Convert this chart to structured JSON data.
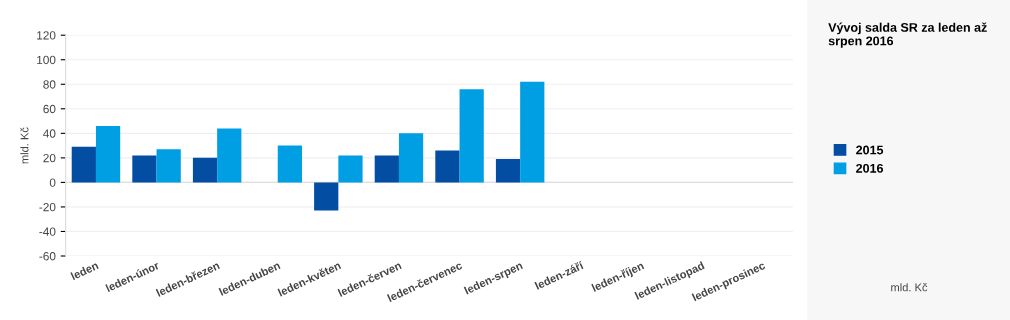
{
  "chart_data": {
    "type": "bar",
    "title": "Vývoj salda SR za leden až srpen 2016",
    "ylabel": "mld. Kč",
    "annotations": [
      "mld. Kč"
    ],
    "categories": [
      "leden",
      "leden-únor",
      "leden-březen",
      "leden-duben",
      "leden-květen",
      "leden-červen",
      "leden-červenec",
      "leden-srpen",
      "leden-září",
      "leden-říjen",
      "leden-listopad",
      "leden-prosinec"
    ],
    "series": [
      {
        "name": "2015",
        "color": "#034ea2",
        "values": [
          29,
          22,
          20,
          null,
          -23,
          22,
          26,
          19,
          null,
          null,
          null,
          null
        ]
      },
      {
        "name": "2016",
        "color": "#009fe3",
        "values": [
          46,
          27,
          44,
          30,
          22,
          40,
          76,
          82,
          null,
          null,
          null,
          null
        ]
      }
    ],
    "ylim": [
      -60,
      120
    ],
    "yticks": [
      -60,
      -40,
      -20,
      0,
      20,
      40,
      60,
      80,
      100,
      120
    ],
    "grid": "y",
    "legend": "right"
  }
}
